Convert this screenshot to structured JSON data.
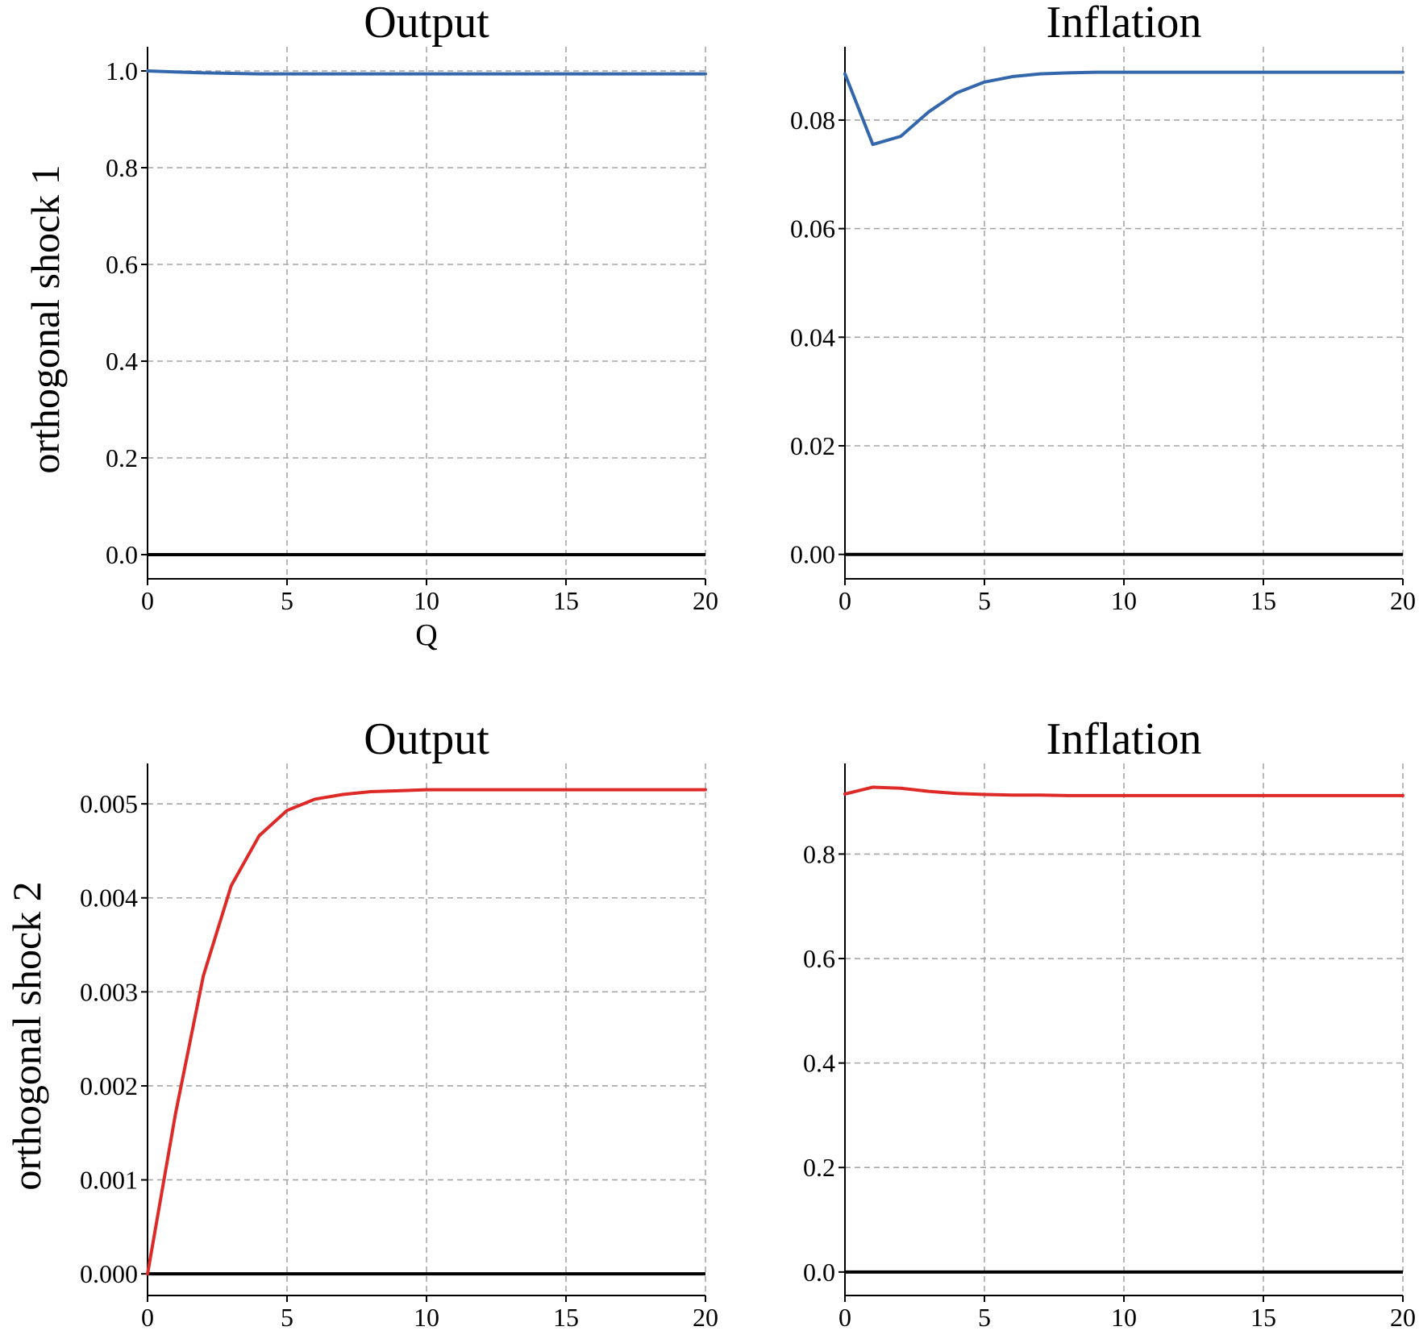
{
  "figure": {
    "row_labels": [
      "orthogonal shock 1",
      "orthogonal shock 2"
    ],
    "colors": {
      "shock1": "#3366aa",
      "shock2": "#dd2a26",
      "zero_line": "#000000",
      "grid": "#a6a6a6"
    }
  },
  "chart_data": [
    {
      "type": "line",
      "title": "Output",
      "xlabel": "Q",
      "ylabel": "",
      "xlim": [
        0,
        20
      ],
      "ylim": [
        -0.05,
        1.05
      ],
      "xticks": [
        0,
        5,
        10,
        15,
        20
      ],
      "xtick_labels": [
        "0",
        "5",
        "10",
        "15",
        "20"
      ],
      "yticks": [
        0.0,
        0.2,
        0.4,
        0.6,
        0.8,
        1.0
      ],
      "ytick_labels": [
        "0.0",
        "0.2",
        "0.4",
        "0.6",
        "0.8",
        "1.0"
      ],
      "grid": true,
      "zero_line": true,
      "color": "#3366aa",
      "x": [
        0,
        1,
        2,
        3,
        4,
        5,
        6,
        7,
        8,
        9,
        10,
        11,
        12,
        13,
        14,
        15,
        16,
        17,
        18,
        19,
        20
      ],
      "values": [
        1.0,
        0.998,
        0.996,
        0.995,
        0.994,
        0.994,
        0.994,
        0.994,
        0.994,
        0.994,
        0.994,
        0.994,
        0.994,
        0.994,
        0.994,
        0.994,
        0.994,
        0.994,
        0.994,
        0.994,
        0.994
      ]
    },
    {
      "type": "line",
      "title": "Inflation",
      "xlabel": "",
      "ylabel": "",
      "xlim": [
        0,
        20
      ],
      "ylim": [
        -0.0045,
        0.0935
      ],
      "xticks": [
        0,
        5,
        10,
        15,
        20
      ],
      "xtick_labels": [
        "0",
        "5",
        "10",
        "15",
        "20"
      ],
      "yticks": [
        0.0,
        0.02,
        0.04,
        0.06,
        0.08
      ],
      "ytick_labels": [
        "0.00",
        "0.02",
        "0.04",
        "0.06",
        "0.08"
      ],
      "grid": true,
      "zero_line": true,
      "color": "#3366aa",
      "x": [
        0,
        1,
        2,
        3,
        4,
        5,
        6,
        7,
        8,
        9,
        10,
        11,
        12,
        13,
        14,
        15,
        16,
        17,
        18,
        19,
        20
      ],
      "values": [
        0.0885,
        0.0755,
        0.077,
        0.0815,
        0.085,
        0.087,
        0.088,
        0.0885,
        0.0887,
        0.0888,
        0.0888,
        0.0888,
        0.0888,
        0.0888,
        0.0888,
        0.0888,
        0.0888,
        0.0888,
        0.0888,
        0.0888,
        0.0888
      ]
    },
    {
      "type": "line",
      "title": "Output",
      "xlabel": "",
      "ylabel": "",
      "xlim": [
        0,
        20
      ],
      "ylim": [
        -0.00023,
        0.00543
      ],
      "xticks": [
        0,
        5,
        10,
        15,
        20
      ],
      "xtick_labels": [
        "0",
        "5",
        "10",
        "15",
        "20"
      ],
      "yticks": [
        0.0,
        0.001,
        0.002,
        0.003,
        0.004,
        0.005
      ],
      "ytick_labels": [
        "0.000",
        "0.001",
        "0.002",
        "0.003",
        "0.004",
        "0.005"
      ],
      "grid": true,
      "zero_line": true,
      "color": "#dd2a26",
      "x": [
        0,
        1,
        2,
        3,
        4,
        5,
        6,
        7,
        8,
        9,
        10,
        11,
        12,
        13,
        14,
        15,
        16,
        17,
        18,
        19,
        20
      ],
      "values": [
        0.0,
        0.0017,
        0.00317,
        0.00413,
        0.00466,
        0.00493,
        0.00505,
        0.0051,
        0.00513,
        0.00514,
        0.00515,
        0.00515,
        0.00515,
        0.00515,
        0.00515,
        0.00515,
        0.00515,
        0.00515,
        0.00515,
        0.00515,
        0.00515
      ]
    },
    {
      "type": "line",
      "title": "Inflation",
      "xlabel": "",
      "ylabel": "",
      "xlim": [
        0,
        20
      ],
      "ylim": [
        -0.045,
        0.9735
      ],
      "xticks": [
        0,
        5,
        10,
        15,
        20
      ],
      "xtick_labels": [
        "0",
        "5",
        "10",
        "15",
        "20"
      ],
      "yticks": [
        0.0,
        0.2,
        0.4,
        0.6,
        0.8
      ],
      "ytick_labels": [
        "0.0",
        "0.2",
        "0.4",
        "0.6",
        "0.8"
      ],
      "grid": true,
      "zero_line": true,
      "color": "#dd2a26",
      "x": [
        0,
        1,
        2,
        3,
        4,
        5,
        6,
        7,
        8,
        9,
        10,
        11,
        12,
        13,
        14,
        15,
        16,
        17,
        18,
        19,
        20
      ],
      "values": [
        0.915,
        0.928,
        0.926,
        0.92,
        0.916,
        0.914,
        0.913,
        0.913,
        0.912,
        0.912,
        0.912,
        0.912,
        0.912,
        0.912,
        0.912,
        0.912,
        0.912,
        0.912,
        0.912,
        0.912,
        0.912
      ]
    }
  ]
}
